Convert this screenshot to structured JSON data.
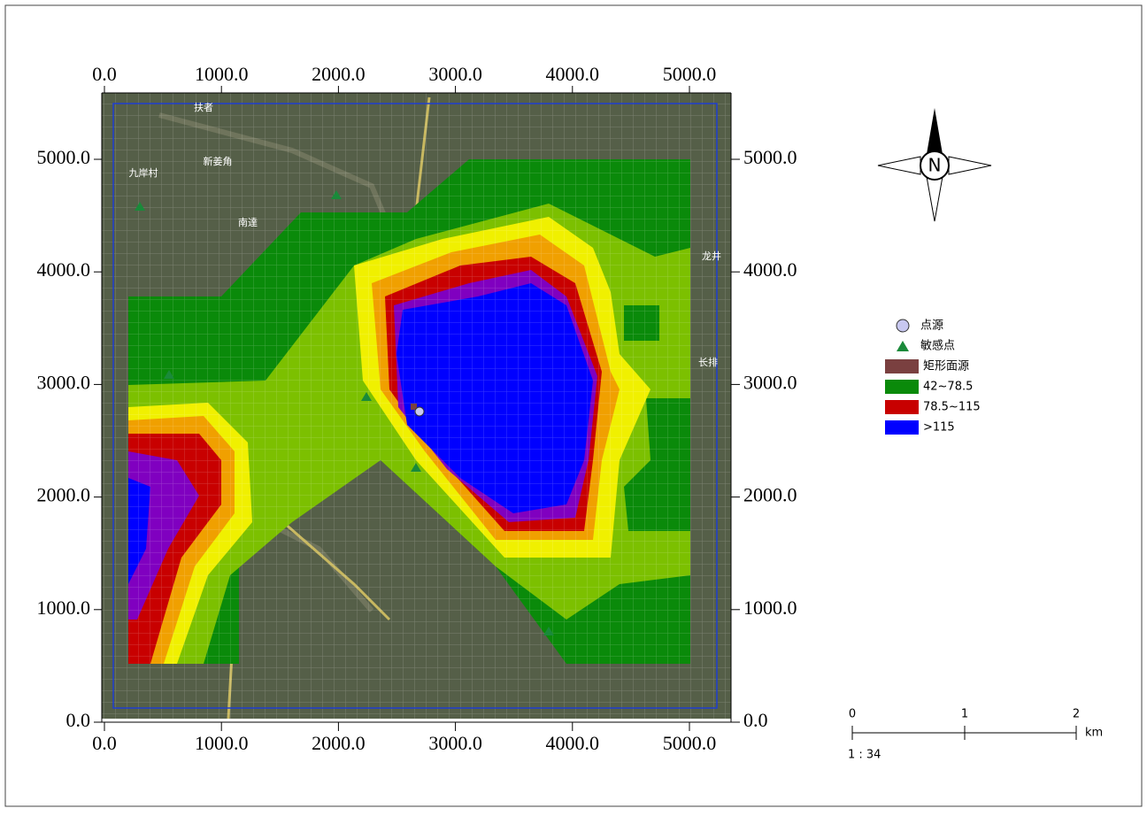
{
  "map": {
    "x_ticks": [
      {
        "value": 0,
        "label": "0.0"
      },
      {
        "value": 1000,
        "label": "1000.0"
      },
      {
        "value": 2000,
        "label": "2000.0"
      },
      {
        "value": 3000,
        "label": "3000.0"
      },
      {
        "value": 4000,
        "label": "4000.0"
      },
      {
        "value": 5000,
        "label": "5000.0"
      }
    ],
    "y_ticks": [
      {
        "value": 0,
        "label": "0.0"
      },
      {
        "value": 1000,
        "label": "1000.0"
      },
      {
        "value": 2000,
        "label": "2000.0"
      },
      {
        "value": 3000,
        "label": "3000.0"
      },
      {
        "value": 4000,
        "label": "4000.0"
      },
      {
        "value": 5000,
        "label": "5000.0"
      }
    ],
    "place_labels": [
      "扶者",
      "九岸村",
      "新姜角",
      "南達",
      "龙井",
      "长排"
    ],
    "north_label": "N"
  },
  "legend": [
    {
      "label": "点源",
      "color": "#c8c8f0"
    },
    {
      "label": "敏感点",
      "color": "#1a8a3a"
    },
    {
      "label": "矩形面源",
      "color": "#7a4040"
    },
    {
      "label": "42~78.5",
      "color": "#0a8a0a"
    },
    {
      "label": "78.5~115",
      "color": "#c80000"
    },
    {
      "label": ">115",
      "color": "#0000ff"
    }
  ],
  "scale_bar": {
    "labels": [
      "0",
      "1",
      "2"
    ],
    "unit": "km",
    "ratio": "1 : 34"
  }
}
